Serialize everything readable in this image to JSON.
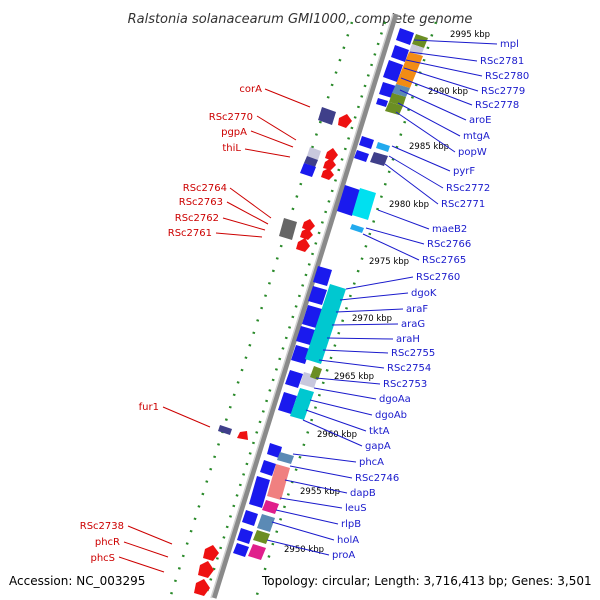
{
  "title": "Ralstonia solanacearum GMI1000, complete genome",
  "accession": "Accession: NC_003295",
  "topology": "Topology: circular; Length: 3,716,413 bp; Genes: 3,501",
  "colors": {
    "left_label": "#cc0000",
    "right_label": "#1a1acc",
    "backbone": "#8a8a8a",
    "ticks": "#2a8a2a"
  },
  "kbp_ticks": [
    "2995 kbp",
    "2990 kbp",
    "2985 kbp",
    "2980 kbp",
    "2975 kbp",
    "2970 kbp",
    "2965 kbp",
    "2960 kbp",
    "2955 kbp",
    "2950 kbp"
  ],
  "left_labels": [
    "corA",
    "RSc2770",
    "pgpA",
    "thiL",
    "RSc2764",
    "RSc2763",
    "RSc2762",
    "RSc2761",
    "fur1",
    "RSc2738",
    "phcR",
    "phcS"
  ],
  "right_labels": [
    "mpl",
    "RSc2781",
    "RSc2780",
    "RSc2779",
    "RSc2778",
    "aroE",
    "mtgA",
    "popW",
    "pyrF",
    "RSc2772",
    "RSc2771",
    "maeB2",
    "RSc2766",
    "RSc2765",
    "RSc2760",
    "dgoK",
    "araF",
    "araG",
    "araH",
    "RSc2755",
    "RSc2754",
    "RSc2753",
    "dgoAa",
    "dgoAb",
    "tktA",
    "gapA",
    "phcA",
    "RSc2746",
    "dapB",
    "leuS",
    "rlpB",
    "holA",
    "proA"
  ]
}
